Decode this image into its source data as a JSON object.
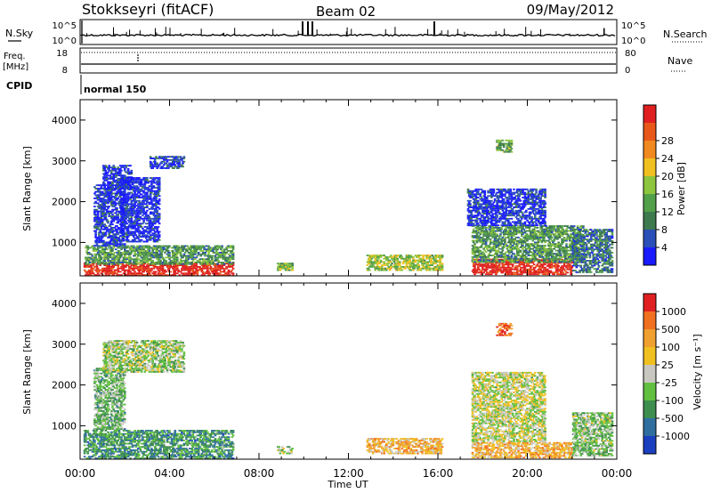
{
  "header": {
    "station": "Stokkseyri (fitACF)",
    "beam": "Beam 02",
    "date": "09/May/2012"
  },
  "strips": {
    "nsky_label": "N.Sky",
    "nsky_ticks": [
      "10^5",
      "10^0"
    ],
    "nsearch_label": "N.Search",
    "nsearch_ticks": [
      "10^5",
      "10^0"
    ],
    "freq_label_line1": "Freq.",
    "freq_label_line2": "[MHz]",
    "freq_ticks": [
      "18",
      "8"
    ],
    "nave_label": "Nave",
    "nave_ticks": [
      "80",
      "0"
    ],
    "cpid_label": "CPID",
    "cpid_value": "normal 150"
  },
  "chart_data": [
    {
      "type": "heatmap",
      "name": "power-panel",
      "ylabel": "Slant Range [km]",
      "xlabel": "Time UT",
      "x_ticks": [
        "00:00",
        "04:00",
        "08:00",
        "12:00",
        "16:00",
        "20:00",
        "00:00"
      ],
      "x_range_hours": [
        0,
        24
      ],
      "y_ticks": [
        1000,
        2000,
        3000,
        4000
      ],
      "y_range_km": [
        180,
        4500
      ],
      "colorbar": {
        "label": "Power [dB]",
        "ticks": [
          "4",
          "8",
          "12",
          "16",
          "20",
          "24",
          "28"
        ],
        "colors": [
          "#1a1aff",
          "#2a4fb8",
          "#3e7a4e",
          "#52a04a",
          "#8ec53e",
          "#f0c020",
          "#f08a20",
          "#e8581a",
          "#e02020"
        ]
      },
      "blobs": [
        {
          "t0": 0.15,
          "t1": 6.8,
          "r0": 180,
          "r1": 500,
          "level": 0.9
        },
        {
          "t0": 0.2,
          "t1": 6.8,
          "r0": 450,
          "r1": 900,
          "level": 0.35
        },
        {
          "t0": 0.6,
          "t1": 2.0,
          "r0": 900,
          "r1": 2400,
          "level": 0.1
        },
        {
          "t0": 1.0,
          "t1": 2.3,
          "r0": 2300,
          "r1": 2900,
          "level": 0.12
        },
        {
          "t0": 3.1,
          "t1": 4.6,
          "r0": 2800,
          "r1": 3100,
          "level": 0.12
        },
        {
          "t0": 1.8,
          "t1": 3.5,
          "r0": 1000,
          "r1": 2600,
          "level": 0.08
        },
        {
          "t0": 8.8,
          "t1": 9.5,
          "r0": 300,
          "r1": 500,
          "level": 0.45
        },
        {
          "t0": 12.8,
          "t1": 16.2,
          "r0": 300,
          "r1": 700,
          "level": 0.5
        },
        {
          "t0": 17.5,
          "t1": 22.0,
          "r0": 200,
          "r1": 600,
          "level": 0.95
        },
        {
          "t0": 17.5,
          "t1": 22.5,
          "r0": 500,
          "r1": 1400,
          "level": 0.35
        },
        {
          "t0": 17.3,
          "t1": 20.8,
          "r0": 1400,
          "r1": 2300,
          "level": 0.1
        },
        {
          "t0": 18.6,
          "t1": 19.3,
          "r0": 3200,
          "r1": 3500,
          "level": 0.4
        },
        {
          "t0": 22.0,
          "t1": 23.8,
          "r0": 250,
          "r1": 1300,
          "level": 0.25
        }
      ]
    },
    {
      "type": "heatmap",
      "name": "velocity-panel",
      "ylabel": "Slant Range [km]",
      "xlabel": "Time UT",
      "x_ticks": [
        "00:00",
        "04:00",
        "08:00",
        "12:00",
        "16:00",
        "20:00",
        "00:00"
      ],
      "x_range_hours": [
        0,
        24
      ],
      "y_ticks": [
        1000,
        2000,
        3000,
        4000
      ],
      "y_range_km": [
        180,
        4500
      ],
      "colorbar": {
        "label": "Velocity [m s⁻¹]",
        "ticks": [
          "1000",
          "500",
          "100",
          "25",
          "-25",
          "-100",
          "-500",
          "-1000"
        ],
        "colors": [
          "#1a3fbf",
          "#2f6fa0",
          "#3e8e50",
          "#62c040",
          "#c8c8c0",
          "#f0c020",
          "#f0a030",
          "#f07020",
          "#e02020"
        ]
      },
      "blobs": [
        {
          "t0": 0.15,
          "t1": 6.8,
          "r0": 180,
          "r1": 900,
          "level": 0.28
        },
        {
          "t0": 0.6,
          "t1": 2.0,
          "r0": 900,
          "r1": 2400,
          "level": 0.38
        },
        {
          "t0": 1.0,
          "t1": 4.6,
          "r0": 2300,
          "r1": 3100,
          "level": 0.45
        },
        {
          "t0": 8.8,
          "t1": 9.5,
          "r0": 300,
          "r1": 500,
          "level": 0.45
        },
        {
          "t0": 12.8,
          "t1": 16.2,
          "r0": 300,
          "r1": 700,
          "level": 0.65
        },
        {
          "t0": 17.5,
          "t1": 22.0,
          "r0": 200,
          "r1": 600,
          "level": 0.66
        },
        {
          "t0": 17.5,
          "t1": 20.8,
          "r0": 600,
          "r1": 2300,
          "level": 0.5
        },
        {
          "t0": 18.6,
          "t1": 19.3,
          "r0": 3200,
          "r1": 3500,
          "level": 0.85
        },
        {
          "t0": 22.0,
          "t1": 23.8,
          "r0": 250,
          "r1": 1300,
          "level": 0.4
        }
      ]
    }
  ]
}
